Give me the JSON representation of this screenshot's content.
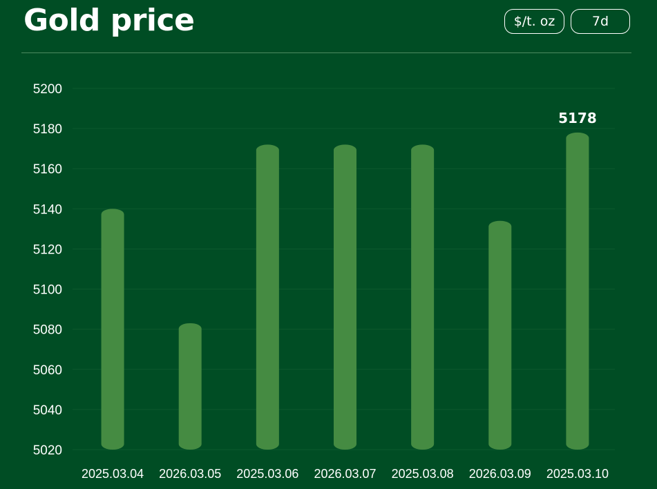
{
  "header": {
    "title": "Gold price",
    "unit_button": "$/t. oz",
    "range_button": "7d"
  },
  "colors": {
    "background": "#004d24",
    "bar": "#458b42",
    "gridline": "#0d5a2e"
  },
  "chart_data": {
    "type": "bar",
    "categories": [
      "2025.03.04",
      "2026.03.05",
      "2025.03.06",
      "2026.03.07",
      "2025.03.08",
      "2026.03.09",
      "2025.03.10"
    ],
    "values": [
      5140,
      5083,
      5172,
      5172,
      5172,
      5134,
      5178
    ],
    "ylim": [
      5020,
      5200
    ],
    "yticks": [
      5020,
      5040,
      5060,
      5080,
      5100,
      5120,
      5140,
      5160,
      5180,
      5200
    ],
    "data_labels": [
      {
        "index": 6,
        "text": "5178"
      }
    ],
    "grid": true,
    "title": "",
    "xlabel": "",
    "ylabel": ""
  }
}
